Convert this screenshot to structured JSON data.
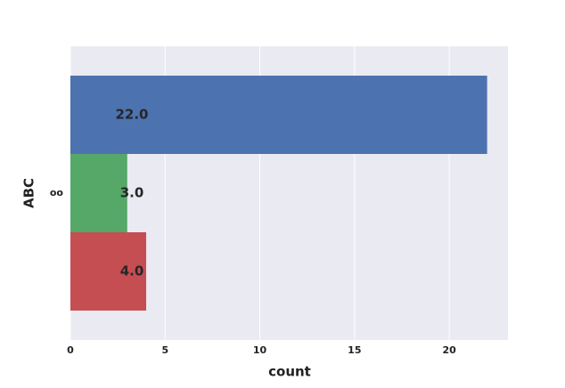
{
  "chart_data": {
    "type": "barh",
    "xlabel": "count",
    "ylabel": "ABC",
    "categories": [
      "oo"
    ],
    "series": [
      {
        "color": "#4c72b0",
        "values": [
          22
        ],
        "value_labels": [
          "22.0"
        ]
      },
      {
        "color": "#55a868",
        "values": [
          3
        ],
        "value_labels": [
          "3.0"
        ]
      },
      {
        "color": "#c44e52",
        "values": [
          4
        ],
        "value_labels": [
          "4.0"
        ]
      }
    ],
    "xlim": [
      0,
      23.1
    ],
    "xticks": [
      0,
      5,
      10,
      15,
      20
    ],
    "grid": true
  }
}
